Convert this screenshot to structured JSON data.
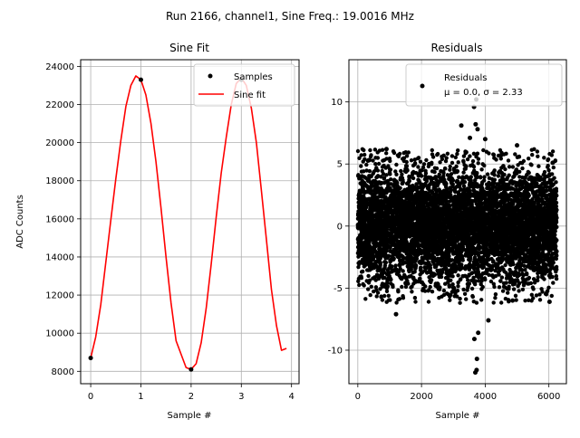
{
  "figure": {
    "suptitle": "Run 2166, channel1, Sine Freq.: 19.0016 MHz"
  },
  "colors": {
    "fit": "#ff0000",
    "points": "#000000",
    "grid": "#b0b0b0"
  },
  "chart_data": [
    {
      "type": "line",
      "title": "Sine Fit",
      "xlabel": "Sample #",
      "ylabel": "ADC Counts",
      "xlim": [
        -0.2,
        4.15
      ],
      "ylim": [
        7350,
        24350
      ],
      "xticks": [
        0,
        1,
        2,
        3,
        4
      ],
      "yticks": [
        8000,
        10000,
        12000,
        14000,
        16000,
        18000,
        20000,
        22000,
        24000
      ],
      "grid": true,
      "legend": "upper right",
      "series": [
        {
          "name": "Samples",
          "style": "points",
          "x": [
            0,
            1,
            2,
            3
          ],
          "y": [
            8700,
            23300,
            8100,
            23300
          ]
        },
        {
          "name": "Sine fit",
          "style": "line",
          "x": [
            0.0,
            0.1,
            0.2,
            0.3,
            0.4,
            0.5,
            0.6,
            0.7,
            0.8,
            0.9,
            1.0,
            1.1,
            1.2,
            1.3,
            1.4,
            1.5,
            1.6,
            1.7,
            1.8,
            1.9,
            2.0,
            2.1,
            2.2,
            2.3,
            2.4,
            2.5,
            2.6,
            2.7,
            2.8,
            2.9,
            3.0,
            3.1,
            3.2,
            3.3,
            3.4,
            3.5,
            3.6,
            3.7,
            3.8,
            3.9
          ],
          "y": [
            8700,
            9800,
            11500,
            13700,
            15900,
            18100,
            20100,
            21900,
            23000,
            23500,
            23300,
            22500,
            21000,
            19000,
            16600,
            14000,
            11600,
            9600,
            8900,
            8200,
            8100,
            8400,
            9500,
            11300,
            13600,
            16100,
            18400,
            20300,
            22000,
            23100,
            23400,
            23000,
            21800,
            20000,
            17500,
            14900,
            12300,
            10400,
            9100,
            9200
          ]
        }
      ]
    },
    {
      "type": "scatter",
      "title": "Residuals",
      "xlabel": "Sample #",
      "ylabel": "",
      "xlim": [
        -280,
        6550
      ],
      "ylim": [
        -12.7,
        13.4
      ],
      "xticks": [
        0,
        2000,
        4000,
        6000
      ],
      "yticks": [
        -10,
        -5,
        0,
        5,
        10
      ],
      "grid": true,
      "legend": "upper right",
      "series": [
        {
          "name": "Residuals",
          "legend_stats": "μ = 0.0, σ = 2.33",
          "n_points": 6250,
          "mean": 0.0,
          "std": 2.33,
          "outliers": [
            {
              "x": 3720,
              "y": 10.2
            },
            {
              "x": 3650,
              "y": 9.6
            },
            {
              "x": 3700,
              "y": 8.2
            },
            {
              "x": 3760,
              "y": 7.8
            },
            {
              "x": 3690,
              "y": -11.8
            },
            {
              "x": 3730,
              "y": -11.6
            },
            {
              "x": 3740,
              "y": -10.7
            },
            {
              "x": 3660,
              "y": -9.1
            },
            {
              "x": 3780,
              "y": -8.6
            },
            {
              "x": 3250,
              "y": 8.1
            },
            {
              "x": 4100,
              "y": -7.6
            },
            {
              "x": 1200,
              "y": -7.1
            },
            {
              "x": 350,
              "y": 5.3
            },
            {
              "x": 6120,
              "y": 5.1
            },
            {
              "x": 900,
              "y": 6.2
            },
            {
              "x": 5000,
              "y": 6.5
            },
            {
              "x": 4000,
              "y": 7.0
            },
            {
              "x": 3520,
              "y": 7.1
            },
            {
              "x": 6020,
              "y": -6.1
            },
            {
              "x": 4860,
              "y": -6.0
            }
          ]
        }
      ]
    }
  ]
}
